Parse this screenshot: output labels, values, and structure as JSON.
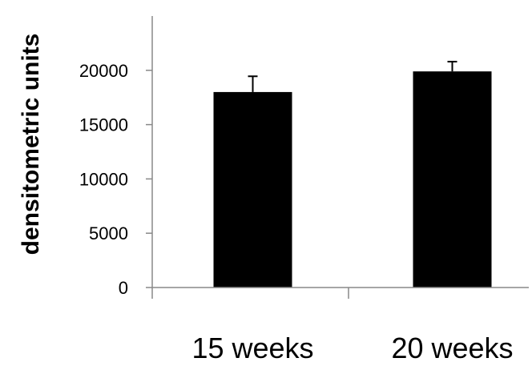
{
  "chart_data": {
    "type": "bar",
    "categories": [
      "15 weeks",
      "20 weeks"
    ],
    "values": [
      18000,
      19900
    ],
    "errors": [
      1450,
      900
    ],
    "ylabel": "densitometric units",
    "xlabel": "",
    "ylim": [
      0,
      25000
    ],
    "yticks": [
      0,
      5000,
      10000,
      15000,
      20000
    ],
    "grid": false,
    "bar_color": "#000000"
  }
}
